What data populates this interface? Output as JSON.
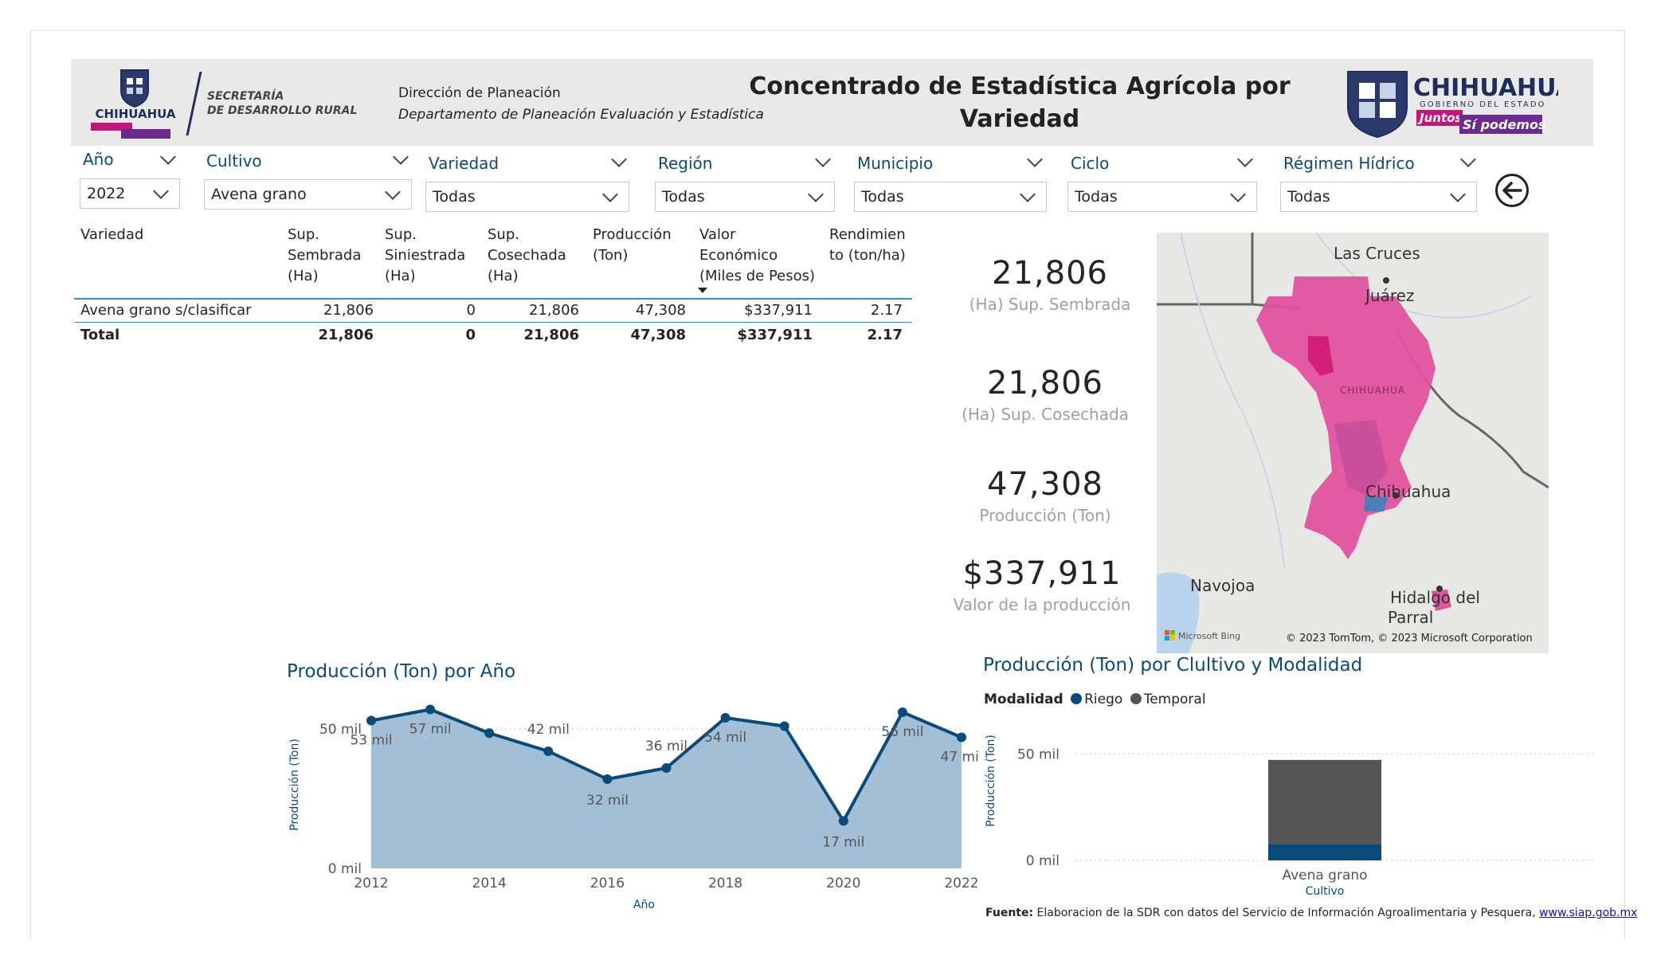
{
  "header": {
    "logo_left_text": "CHIHUAHUA",
    "sdr_line1": "SECRETARÍA",
    "sdr_line2": "DE DESARROLLO RURAL",
    "direccion": "Dirección de Planeación",
    "departamento": "Departamento de Planeación Evaluación y Estadística",
    "title": "Concentrado de Estadística Agrícola por Variedad",
    "logo_right_text": "CHIHUAHUA",
    "logo_right_sub": "GOBIERNO DEL ESTADO",
    "logo_right_tag1": "Juntos",
    "logo_right_tag2": "Sí podemos"
  },
  "slicers": [
    {
      "label": "Año",
      "value": "2022"
    },
    {
      "label": "Cultivo",
      "value": "Avena grano"
    },
    {
      "label": "Variedad",
      "value": "Todas"
    },
    {
      "label": "Región",
      "value": "Todas"
    },
    {
      "label": "Municipio",
      "value": "Todas"
    },
    {
      "label": "Ciclo",
      "value": "Todas"
    },
    {
      "label": "Régimen Hídrico",
      "value": "Todas"
    }
  ],
  "back_icon": "arrow-left-circle-icon",
  "table": {
    "headers": {
      "variedad": "Variedad",
      "sembrada": [
        "Sup.",
        "Sembrada",
        "(Ha)"
      ],
      "siniestrada": [
        "Sup.",
        "Siniestrada",
        "(Ha)"
      ],
      "cosechada": [
        "Sup.",
        "Cosechada",
        "(Ha)"
      ],
      "produccion": [
        "Producción",
        "(Ton)"
      ],
      "valor": [
        "Valor",
        "Económico",
        "(Miles de Pesos)"
      ],
      "rendimiento": [
        "Rendimien",
        "to (ton/ha)"
      ]
    },
    "rows": [
      {
        "variedad": "Avena grano s/clasificar",
        "sembrada": "21,806",
        "siniestrada": "0",
        "cosechada": "21,806",
        "produccion": "47,308",
        "valor": "$337,911",
        "rendimiento": "2.17"
      }
    ],
    "total": {
      "variedad": "Total",
      "sembrada": "21,806",
      "siniestrada": "0",
      "cosechada": "21,806",
      "produccion": "47,308",
      "valor": "$337,911",
      "rendimiento": "2.17"
    }
  },
  "kpis": [
    {
      "value": "21,806",
      "label": "(Ha) Sup. Sembrada"
    },
    {
      "value": "21,806",
      "label": "(Ha) Sup. Cosechada"
    },
    {
      "value": "47,308",
      "label": "Producción (Ton)"
    },
    {
      "value": "$337,911",
      "label": "Valor de la producción"
    }
  ],
  "map": {
    "labels": {
      "las_cruces": "Las Cruces",
      "juarez": "Juárez",
      "chihuahua_state": "CHIHUAHUA",
      "chihuahua_city": "Chihuahua",
      "navojoa": "Navojoa",
      "hidalgo": "Hidalgo del",
      "parral": "Parral"
    },
    "bing": "Microsoft Bing",
    "credit": "© 2023 TomTom, © 2023 Microsoft Corporation",
    "colors": {
      "land": "#e6e8e4",
      "water": "#b8d4ec",
      "highlight": "#e2529e",
      "highlight_dark": "#d11f7c",
      "blue": "#4a7fb8"
    }
  },
  "charts": {
    "line_title": "Producción (Ton) por Año",
    "bar_title": "Producción (Ton) por Clultivo y Modalidad",
    "legend_title": "Modalidad",
    "source_label": "Fuente:",
    "source_text": " Elaboracion de la SDR con datos del Servicio de Información Agroalimentaria y Pesquera, ",
    "source_link": "www.siap.gob.mx"
  },
  "chart_data": [
    {
      "type": "area",
      "title": "Producción (Ton) por Año",
      "xlabel": "Año",
      "ylabel": "Producción (Ton)",
      "x": [
        2012,
        2013,
        2014,
        2015,
        2016,
        2017,
        2018,
        2019,
        2020,
        2021,
        2022
      ],
      "values": [
        53000,
        57000,
        48500,
        42000,
        32000,
        36000,
        54000,
        51000,
        17000,
        56000,
        47000
      ],
      "data_labels": [
        "53 mil",
        "57 mil",
        "",
        "42 mil",
        "32 mil",
        "36 mil",
        "54 mil",
        "",
        "17 mil",
        "56 mil",
        "47 mil"
      ],
      "x_ticks": [
        "2012",
        "2014",
        "2016",
        "2018",
        "2020",
        "2022"
      ],
      "y_ticks": [
        "0 mil",
        "50 mil"
      ],
      "ylim": [
        0,
        60000
      ],
      "color": "#0a4a7a",
      "fill": "#a3bfd6"
    },
    {
      "type": "bar",
      "title": "Producción (Ton) por Clultivo y Modalidad",
      "xlabel": "Cultivo",
      "ylabel": "Producción (Ton)",
      "categories": [
        "Avena grano"
      ],
      "series": [
        {
          "name": "Riego",
          "values": [
            7500
          ],
          "color": "#0a4a7a"
        },
        {
          "name": "Temporal",
          "values": [
            39808
          ],
          "color": "#555555"
        }
      ],
      "y_ticks": [
        "0 mil",
        "50 mil"
      ],
      "ylim": [
        0,
        60000
      ],
      "legend": "top-left"
    }
  ]
}
